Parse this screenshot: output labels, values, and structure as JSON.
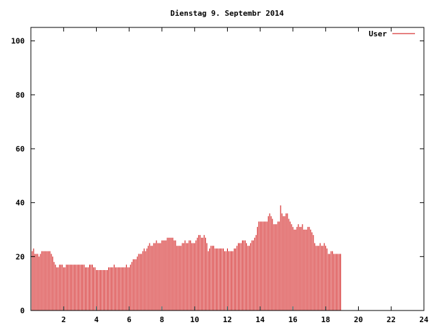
{
  "chart_data": {
    "type": "bar",
    "title": "Dienstag 9. Septembr 2014",
    "xlabel": "",
    "ylabel": "",
    "xlim": [
      0,
      24
    ],
    "ylim": [
      0,
      105
    ],
    "x_ticks": [
      2,
      4,
      6,
      8,
      10,
      12,
      14,
      16,
      18,
      20,
      22,
      24
    ],
    "x_tick_labels": [
      "2",
      "4",
      "6",
      "8",
      "10",
      "12",
      "14",
      "16",
      "18",
      "20",
      "22",
      "24"
    ],
    "y_ticks": [
      0,
      20,
      40,
      60,
      80,
      100
    ],
    "y_tick_labels": [
      "0",
      "20",
      "40",
      "60",
      "80",
      "100"
    ],
    "grid": false,
    "legend_position": "top-right",
    "series": [
      {
        "name": "User",
        "color": "#cc0000",
        "interval_hours": 0.083333,
        "values": [
          22,
          22,
          23,
          21,
          21,
          21,
          20,
          21,
          22,
          22,
          22,
          22,
          22,
          22,
          22,
          21,
          20,
          18,
          17,
          16,
          16,
          17,
          17,
          17,
          16,
          16,
          17,
          17,
          17,
          17,
          17,
          17,
          17,
          17,
          17,
          17,
          17,
          17,
          17,
          17,
          16,
          16,
          16,
          17,
          17,
          17,
          16,
          16,
          15,
          15,
          15,
          15,
          15,
          15,
          15,
          15,
          15,
          16,
          16,
          16,
          16,
          17,
          16,
          16,
          16,
          16,
          16,
          16,
          16,
          16,
          17,
          16,
          16,
          17,
          18,
          19,
          19,
          19,
          20,
          21,
          21,
          21,
          22,
          23,
          22,
          23,
          24,
          25,
          24,
          24,
          25,
          25,
          26,
          25,
          25,
          25,
          26,
          26,
          26,
          26,
          27,
          27,
          27,
          27,
          27,
          26,
          26,
          24,
          24,
          24,
          24,
          25,
          25,
          26,
          25,
          25,
          26,
          26,
          25,
          25,
          25,
          26,
          27,
          28,
          28,
          27,
          27,
          28,
          27,
          25,
          22,
          23,
          24,
          24,
          24,
          23,
          23,
          23,
          23,
          23,
          23,
          23,
          22,
          22,
          23,
          22,
          22,
          22,
          22,
          23,
          23,
          24,
          25,
          25,
          25,
          26,
          26,
          26,
          25,
          24,
          24,
          25,
          26,
          26,
          27,
          28,
          31,
          33,
          33,
          33,
          33,
          33,
          33,
          33,
          35,
          36,
          35,
          34,
          32,
          32,
          32,
          33,
          33,
          39,
          36,
          35,
          35,
          36,
          36,
          34,
          33,
          32,
          31,
          30,
          30,
          31,
          32,
          31,
          31,
          32,
          30,
          30,
          30,
          31,
          31,
          30,
          29,
          28,
          25,
          24,
          24,
          24,
          25,
          24,
          24,
          25,
          24,
          23,
          21,
          21,
          22,
          22,
          21,
          21,
          21,
          21,
          21,
          21
        ]
      }
    ]
  }
}
